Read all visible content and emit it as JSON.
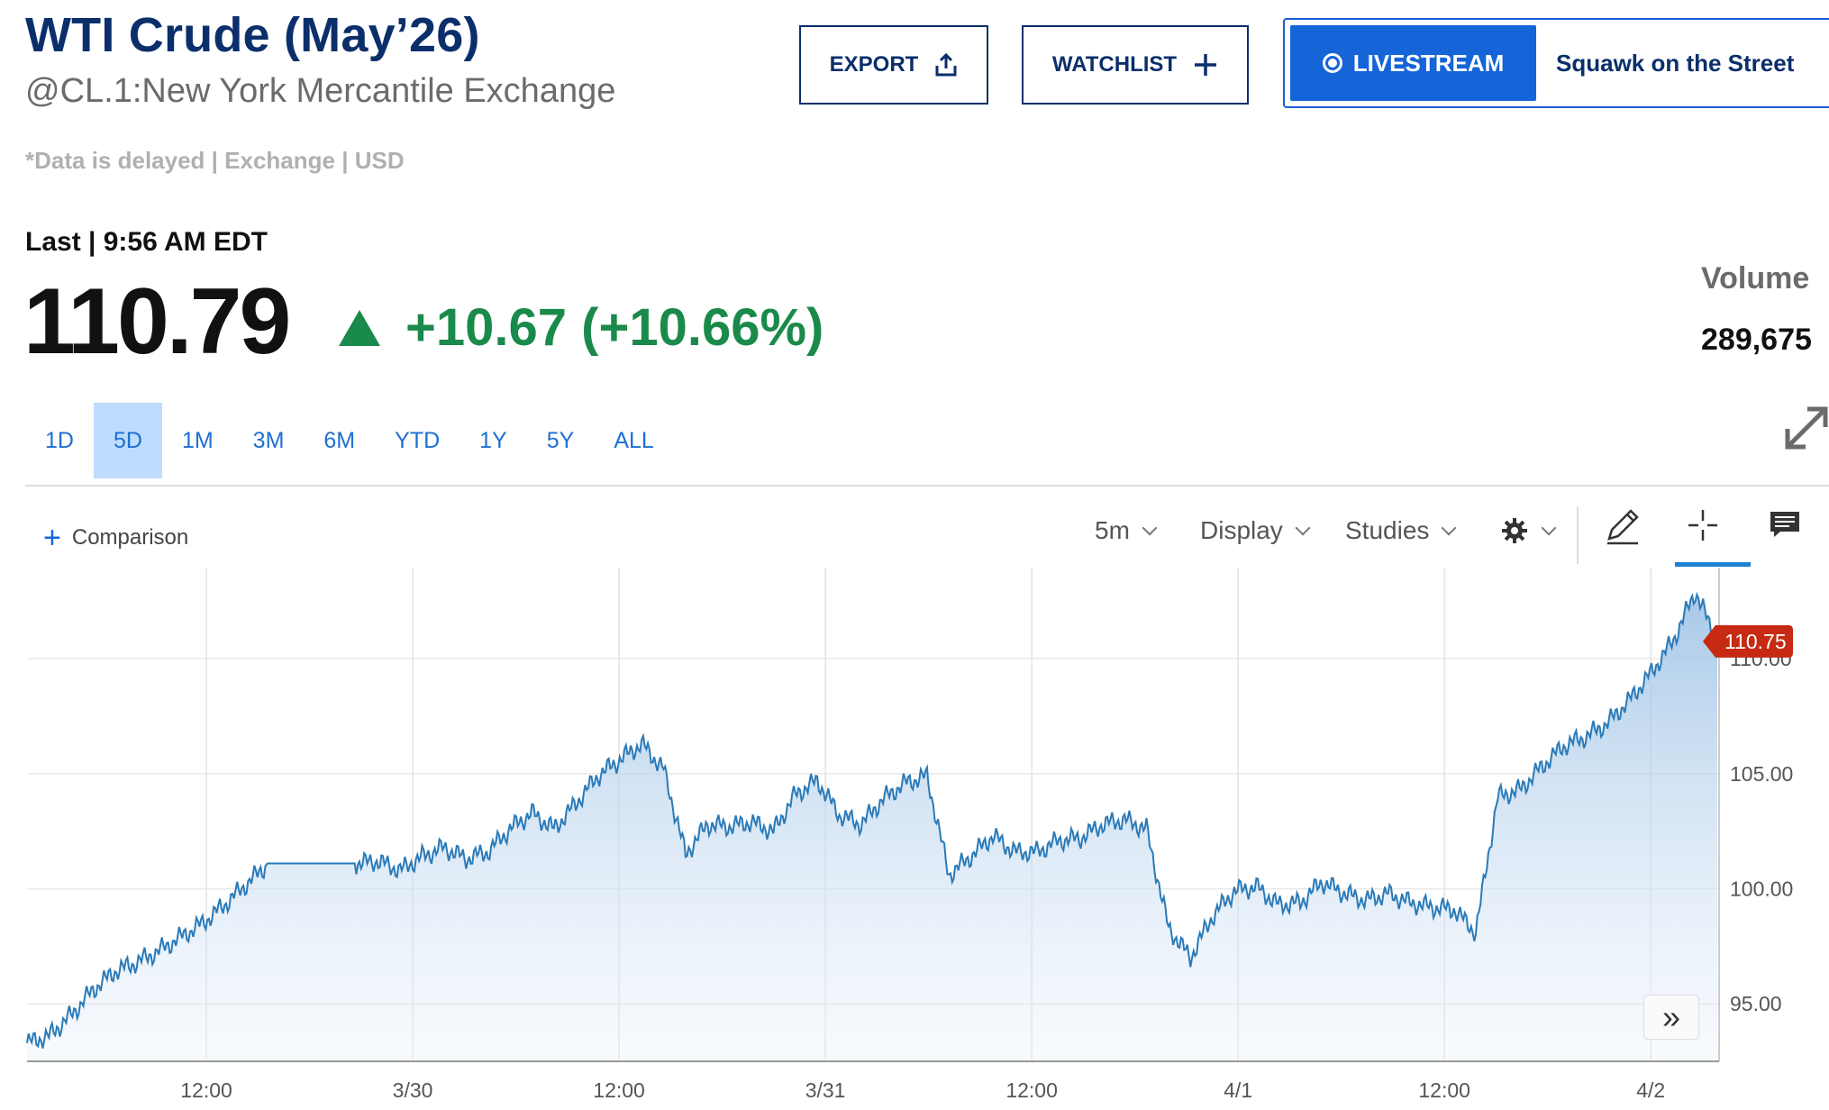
{
  "header": {
    "title": "WTI Crude (May’26)",
    "subtitle": "@CL.1:New York Mercantile Exchange",
    "delayed_note": "*Data is delayed | Exchange | USD"
  },
  "actions": {
    "export_label": "EXPORT",
    "watchlist_label": "WATCHLIST"
  },
  "livestream": {
    "button_label": "LIVESTREAM",
    "show": "Squawk on the Street"
  },
  "quote": {
    "last_label": "Last | 9:56 AM EDT",
    "price": "110.79",
    "change": "+10.67 (+10.66%)",
    "change_direction": "up",
    "volume_label": "Volume",
    "volume": "289,675"
  },
  "ranges": {
    "items": [
      "1D",
      "5D",
      "1M",
      "3M",
      "6M",
      "YTD",
      "1Y",
      "5Y",
      "ALL"
    ],
    "selected": "5D"
  },
  "toolbar": {
    "comparison_label": "Comparison",
    "interval": "5m",
    "display_label": "Display",
    "studies_label": "Studies"
  },
  "icons": {
    "export": "share-upload-icon",
    "watchlist": "plus-icon",
    "expand": "expand-arrows-icon",
    "settings": "gear-icon",
    "draw": "pencil-icon",
    "crosshair": "crosshair-icon",
    "annotation": "comment-icon",
    "scroll_latest": "double-chevron-right-icon"
  },
  "colors": {
    "brand_navy": "#0b2f6b",
    "positive": "#1a8a4a",
    "link_blue": "#1d6fd1",
    "line": "#2a7ab8",
    "price_flag": "#c62a13"
  },
  "chart_data": {
    "type": "area",
    "y_ticks": [
      "95.00",
      "100.00",
      "105.00",
      "110.00"
    ],
    "ylim": [
      92.5,
      113.8
    ],
    "x_ticks": [
      "12:00",
      "3/30",
      "12:00",
      "3/31",
      "12:00",
      "4/1",
      "12:00",
      "4/2"
    ],
    "current_price_label": "110.75",
    "series": [
      {
        "values": [
          93.3,
          93.6,
          94.5,
          95.6,
          96.4,
          96.8,
          97.3,
          97.9,
          98.5,
          99.3,
          100.2,
          101.1,
          101.1,
          101.1,
          101.1,
          101.1,
          101.2,
          100.8,
          101.4,
          101.8,
          101.3,
          101.6,
          102.6,
          103.3,
          102.6,
          103.7,
          104.9,
          105.6,
          106.3,
          105.2,
          101.5,
          102.8,
          102.7,
          102.9,
          102.5,
          104.1,
          104.7,
          103.2,
          102.8,
          103.9,
          104.6,
          104.9,
          100.6,
          101.4,
          102.3,
          101.6,
          101.6,
          102.1,
          102.2,
          102.8,
          103.0,
          102.6,
          98.3,
          97.0,
          98.8,
          99.9,
          100.1,
          99.3,
          99.4,
          100.3,
          99.8,
          99.5,
          99.8,
          99.4,
          99.2,
          99.1,
          98.1,
          104.0,
          104.3,
          105.3,
          106.2,
          106.6,
          107.2,
          108.2,
          109.4,
          110.8,
          112.9,
          110.75
        ]
      }
    ]
  }
}
